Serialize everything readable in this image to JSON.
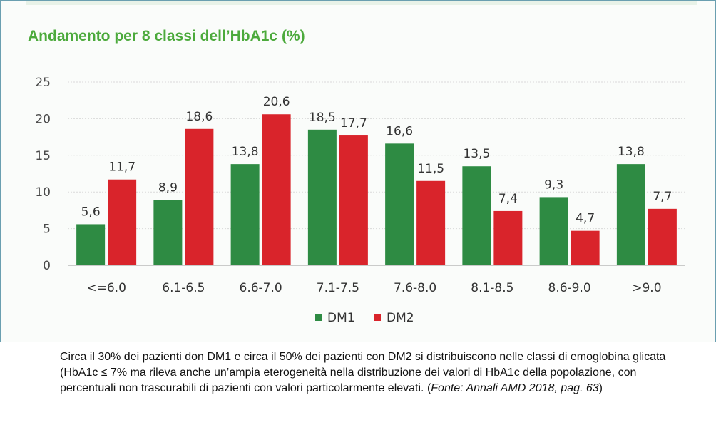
{
  "title": "Andamento per 8 classi dell’HbA1c (%)",
  "colors": {
    "DM1": "#2e8b43",
    "DM2": "#d9242b",
    "title": "#4caa3c"
  },
  "chart_data": {
    "type": "bar",
    "title": "Andamento per 8 classi dell’HbA1c (%)",
    "categories": [
      "<=6.0",
      "6.1-6.5",
      "6.6-7.0",
      "7.1-7.5",
      "7.6-8.0",
      "8.1-8.5",
      "8.6-9.0",
      ">9.0"
    ],
    "series": [
      {
        "name": "DM1",
        "values": [
          5.6,
          8.9,
          13.8,
          18.5,
          16.6,
          13.5,
          9.3,
          13.8
        ],
        "labels": [
          "5,6",
          "8,9",
          "13,8",
          "18,5",
          "16,6",
          "13,5",
          "9,3",
          "13,8"
        ]
      },
      {
        "name": "DM2",
        "values": [
          11.7,
          18.6,
          20.6,
          17.7,
          11.5,
          7.4,
          4.7,
          7.7
        ],
        "labels": [
          "11,7",
          "18,6",
          "20,6",
          "17,7",
          "11,5",
          "7,4",
          "4,7",
          "7,7"
        ]
      }
    ],
    "ylim": [
      0,
      25
    ],
    "yticks": [
      0,
      5,
      10,
      15,
      20,
      25
    ],
    "grid": true,
    "legend": "bottom-center",
    "xlabel": "",
    "ylabel": ""
  },
  "caption": {
    "text": "Circa il 30% dei pazienti don DM1 e circa il 50% dei pazienti con DM2 si distribuiscono nelle classi di emoglobina glicata (HbA1c  ≤ 7% ma rileva anche un’ampia eterogeneità nella distribuzione dei valori di HbA1c della popolazione, con percentuali non trascurabili di pazienti con valori particolarmente elevati. (",
    "source": "Fonte: Annali AMD 2018, pag. 63",
    "close": ")"
  }
}
